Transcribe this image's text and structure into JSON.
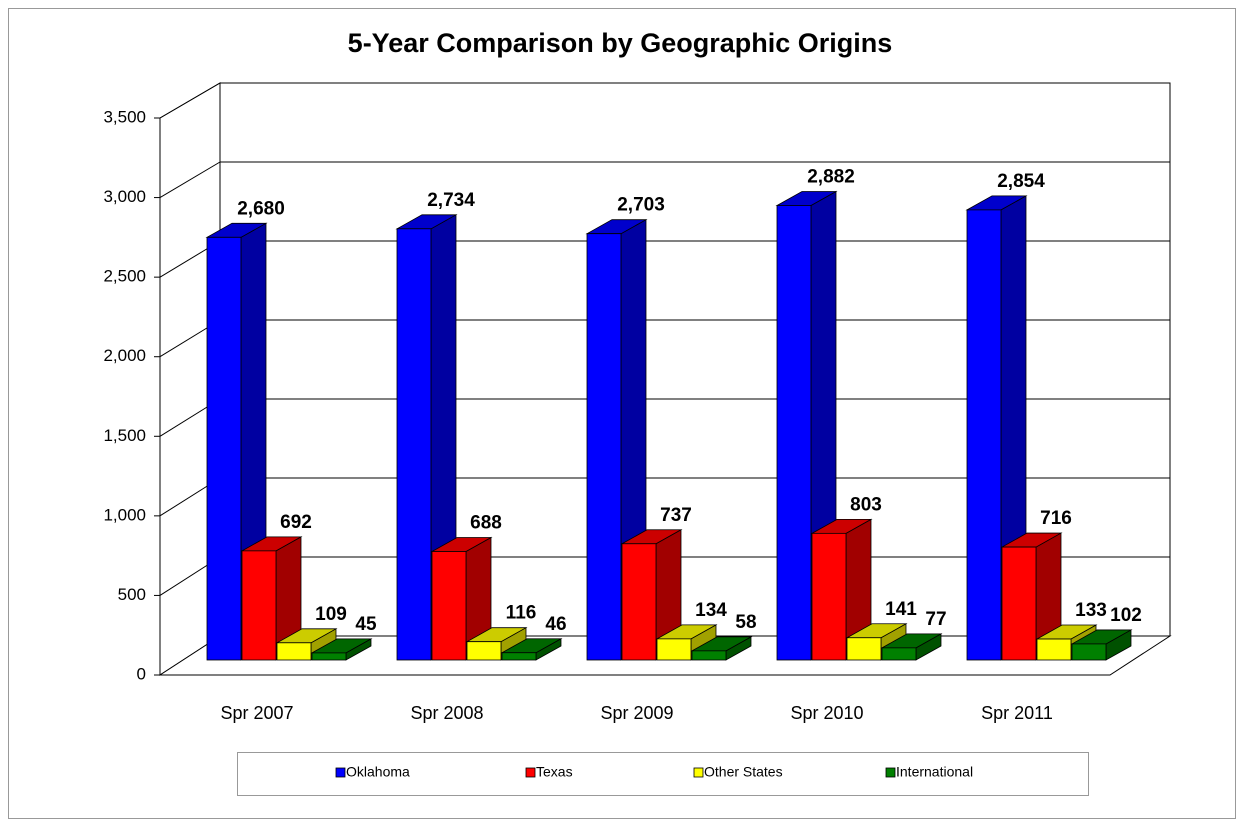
{
  "chart_data": {
    "type": "bar3d",
    "title": "5-Year Comparison by Geographic Origins",
    "categories": [
      "Spr 2007",
      "Spr 2008",
      "Spr 2009",
      "Spr 2010",
      "Spr 2011"
    ],
    "series": [
      {
        "name": "Oklahoma",
        "color": "#0000ff",
        "values": [
          2680,
          2734,
          2703,
          2882,
          2854
        ],
        "value_labels": [
          "2,680",
          "2,734",
          "2,703",
          "2,882",
          "2,854"
        ]
      },
      {
        "name": "Texas",
        "color": "#ff0000",
        "values": [
          692,
          688,
          737,
          803,
          716
        ]
      },
      {
        "name": "Other States",
        "color": "#ffff00",
        "values": [
          109,
          116,
          134,
          141,
          133
        ]
      },
      {
        "name": "International",
        "color": "#008000",
        "values": [
          45,
          46,
          58,
          77,
          102
        ]
      }
    ],
    "ylim": [
      0,
      3500
    ],
    "yticks": [
      0,
      500,
      {
        "value": 1000,
        "label": "1,000"
      },
      {
        "value": 1500,
        "label": "1,500"
      },
      {
        "value": 2000,
        "label": "2,000"
      },
      {
        "value": 2500,
        "label": "2,500"
      },
      {
        "value": 3000,
        "label": "3,000"
      },
      {
        "value": 3500,
        "label": "3,500"
      }
    ],
    "grid": true,
    "legend": "bottom"
  }
}
